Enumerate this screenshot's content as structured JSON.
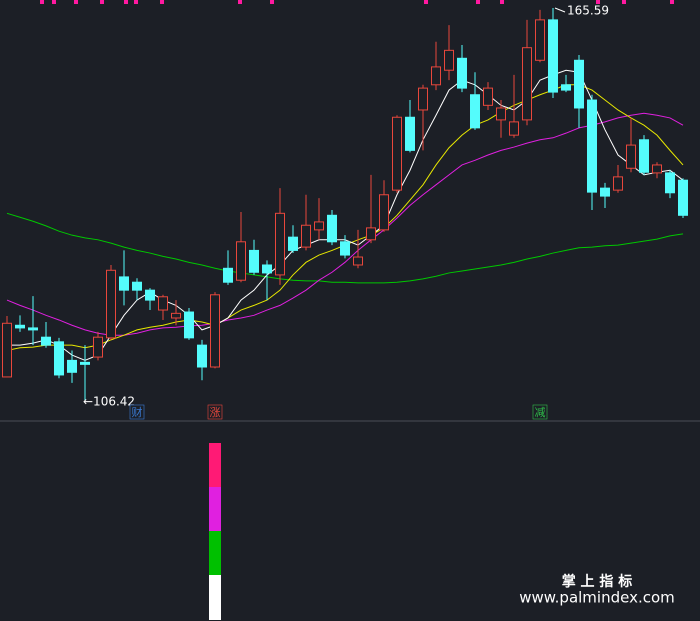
{
  "chart_data": {
    "type": "candlestick",
    "open": [
      109.9,
      117.7,
      117.3,
      115.9,
      115.2,
      112.4,
      112.1,
      112.9,
      115.8,
      125.0,
      124.2,
      123.0,
      120.0,
      118.8,
      119.7,
      114.7,
      111.4,
      126.3,
      124.5,
      129.0,
      126.8,
      125.3,
      131.0,
      129.5,
      132.1,
      134.3,
      130.3,
      126.8,
      130.6,
      132.1,
      138.1,
      149.1,
      150.2,
      154.0,
      156.2,
      158.0,
      152.5,
      150.9,
      148.7,
      146.4,
      148.7,
      157.7,
      163.8,
      154.0,
      157.7,
      151.7,
      138.4,
      138.1,
      141.4,
      145.7,
      140.7,
      140.7,
      139.6
    ],
    "high": [
      119.1,
      119.2,
      122.1,
      118.2,
      115.8,
      113.9,
      114.7,
      116.7,
      126.8,
      129.0,
      124.8,
      123.3,
      122.3,
      121.5,
      120.3,
      115.5,
      122.7,
      129.0,
      134.8,
      130.6,
      127.5,
      138.4,
      132.8,
      137.4,
      136.9,
      135.1,
      131.3,
      132.1,
      140.4,
      139.6,
      149.4,
      151.7,
      154.0,
      160.5,
      163.0,
      160.0,
      155.9,
      154.4,
      151.7,
      155.5,
      163.8,
      165.3,
      165.59,
      155.5,
      158.5,
      152.5,
      139.2,
      141.9,
      149.0,
      146.4,
      142.3,
      141.1,
      139.9
    ],
    "low": [
      109.9,
      116.7,
      114.7,
      114.3,
      109.7,
      109.0,
      106.42,
      112.4,
      115.5,
      120.7,
      121.5,
      120.0,
      118.5,
      117.7,
      115.5,
      109.4,
      111.2,
      123.8,
      124.2,
      125.3,
      121.5,
      123.8,
      128.6,
      129.0,
      130.6,
      129.8,
      127.8,
      126.3,
      130.1,
      131.8,
      137.7,
      143.8,
      144.1,
      153.2,
      154.7,
      152.9,
      147.2,
      150.2,
      146.0,
      146.0,
      147.9,
      157.4,
      152.0,
      152.9,
      147.5,
      135.1,
      135.4,
      137.7,
      140.8,
      140.4,
      139.9,
      136.9,
      133.9
    ],
    "close": [
      118.0,
      117.3,
      117.0,
      114.7,
      110.2,
      110.6,
      111.8,
      115.9,
      126.0,
      123.0,
      123.0,
      121.5,
      122.0,
      119.5,
      115.8,
      111.4,
      122.3,
      124.2,
      130.3,
      125.7,
      125.6,
      134.6,
      129.0,
      132.8,
      133.3,
      130.3,
      128.3,
      128.0,
      132.4,
      137.4,
      149.1,
      144.1,
      153.5,
      156.7,
      159.2,
      153.5,
      147.5,
      153.5,
      150.5,
      148.4,
      159.6,
      163.8,
      152.9,
      153.2,
      150.5,
      137.8,
      137.2,
      140.1,
      144.9,
      140.8,
      141.9,
      137.7,
      134.3
    ],
    "up_color": "#e8473c",
    "down_color": "#54fcfc",
    "lines": [
      {
        "color": "#00c800",
        "values": [
          134.6,
          134.0,
          133.4,
          132.7,
          131.9,
          131.3,
          130.9,
          130.6,
          130.1,
          129.5,
          129.0,
          128.6,
          128.1,
          127.7,
          127.2,
          126.8,
          126.3,
          125.9,
          125.6,
          125.3,
          125.0,
          124.7,
          124.5,
          124.4,
          124.4,
          124.2,
          124.2,
          124.1,
          124.1,
          124.1,
          124.2,
          124.4,
          124.7,
          125.1,
          125.6,
          125.9,
          126.2,
          126.5,
          126.8,
          127.2,
          127.7,
          128.1,
          128.6,
          129.0,
          129.4,
          129.5,
          129.7,
          129.8,
          130.1,
          130.4,
          130.7,
          131.2,
          131.5
        ]
      },
      {
        "color": "#e020e0",
        "values": [
          121.5,
          120.7,
          120.0,
          119.2,
          118.5,
          117.7,
          117.0,
          116.5,
          116.2,
          116.2,
          116.5,
          117.0,
          117.3,
          117.4,
          117.6,
          117.7,
          118.0,
          118.5,
          118.8,
          119.2,
          120.0,
          120.7,
          121.8,
          123.0,
          124.5,
          125.7,
          127.2,
          129.0,
          130.6,
          132.1,
          133.9,
          135.8,
          137.4,
          138.9,
          140.4,
          141.9,
          142.6,
          143.4,
          144.1,
          144.6,
          145.2,
          145.7,
          146.0,
          146.7,
          147.5,
          147.9,
          148.4,
          149.0,
          149.4,
          149.7,
          149.4,
          149.0,
          147.9
        ]
      },
      {
        "color": "#e8e800",
        "values": [
          113.9,
          114.3,
          114.4,
          114.7,
          114.7,
          114.7,
          114.3,
          114.7,
          115.5,
          116.2,
          117.0,
          117.4,
          117.7,
          118.2,
          118.5,
          118.2,
          117.7,
          118.8,
          120.0,
          120.7,
          121.5,
          123.0,
          125.3,
          127.2,
          128.3,
          129.0,
          129.8,
          130.6,
          131.3,
          132.4,
          134.3,
          136.6,
          138.9,
          141.9,
          144.5,
          146.4,
          147.9,
          148.7,
          149.9,
          150.9,
          151.7,
          152.5,
          153.2,
          154.0,
          154.0,
          153.2,
          151.7,
          150.2,
          149.0,
          147.9,
          146.4,
          144.1,
          141.9
        ]
      },
      {
        "color": "#ffffff",
        "values": [
          114.7,
          114.7,
          115.0,
          115.5,
          114.7,
          113.2,
          112.4,
          113.2,
          116.2,
          119.2,
          121.5,
          122.7,
          121.5,
          120.7,
          119.2,
          117.0,
          117.7,
          118.8,
          121.5,
          123.0,
          125.3,
          126.8,
          129.0,
          129.8,
          130.6,
          130.6,
          130.6,
          129.8,
          131.3,
          132.8,
          137.4,
          141.1,
          145.7,
          149.4,
          153.2,
          154.7,
          154.0,
          152.5,
          150.9,
          150.2,
          151.7,
          154.7,
          155.5,
          156.2,
          155.9,
          151.7,
          147.2,
          143.4,
          141.9,
          140.4,
          140.8,
          141.1,
          139.6
        ]
      }
    ],
    "ylim": [
      103.4,
      166.8
    ],
    "annotations": [
      {
        "label": "←106.42",
        "value": 106.42
      },
      {
        "label": "165.59",
        "value": 165.59
      }
    ],
    "event_labels": [
      null,
      null,
      null,
      null,
      null,
      null,
      null,
      null,
      null,
      null,
      "财",
      null,
      null,
      null,
      null,
      null,
      "涨",
      null,
      null,
      null,
      null,
      null,
      null,
      null,
      null,
      null,
      null,
      null,
      null,
      null,
      null,
      null,
      null,
      null,
      null,
      null,
      null,
      null,
      null,
      null,
      null,
      "减",
      null,
      null,
      null,
      null,
      null,
      null,
      null,
      null,
      null,
      null,
      null
    ],
    "footer": {
      "title": "掌 上 指 标",
      "url": "www.palmindex.com"
    }
  }
}
